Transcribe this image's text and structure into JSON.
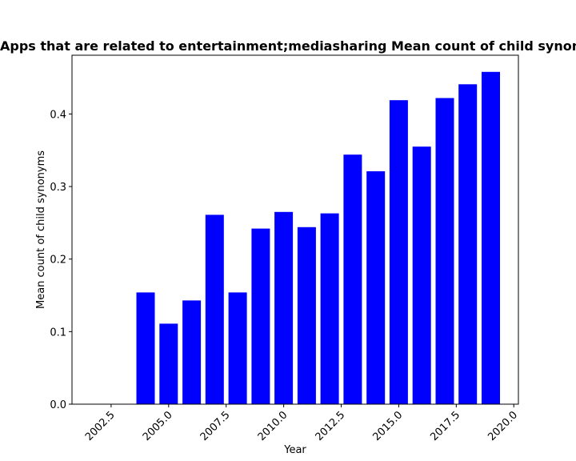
{
  "chart_data": {
    "type": "bar",
    "title": "Apps that are related to entertainment;mediasharing Mean count of child synonyms in privacy policies",
    "xlabel": "Year",
    "ylabel": "Mean count of child synonyms",
    "x": [
      2003,
      2004,
      2005,
      2006,
      2007,
      2008,
      2009,
      2010,
      2011,
      2012,
      2013,
      2014,
      2015,
      2016,
      2017,
      2018,
      2019
    ],
    "values": [
      0.0,
      0.154,
      0.111,
      0.143,
      0.261,
      0.154,
      0.242,
      0.265,
      0.244,
      0.263,
      0.344,
      0.321,
      0.419,
      0.355,
      0.422,
      0.441,
      0.458
    ],
    "xlim": [
      2000.8,
      2020.2
    ],
    "ylim": [
      0,
      0.481
    ],
    "xticks": [
      "2002.5",
      "2005.0",
      "2007.5",
      "2010.0",
      "2012.5",
      "2015.0",
      "2017.5",
      "2020.0"
    ],
    "yticks": [
      "0.0",
      "0.1",
      "0.2",
      "0.3",
      "0.4"
    ],
    "bar_color": "#0000ff",
    "grid": false,
    "legend": "none"
  }
}
